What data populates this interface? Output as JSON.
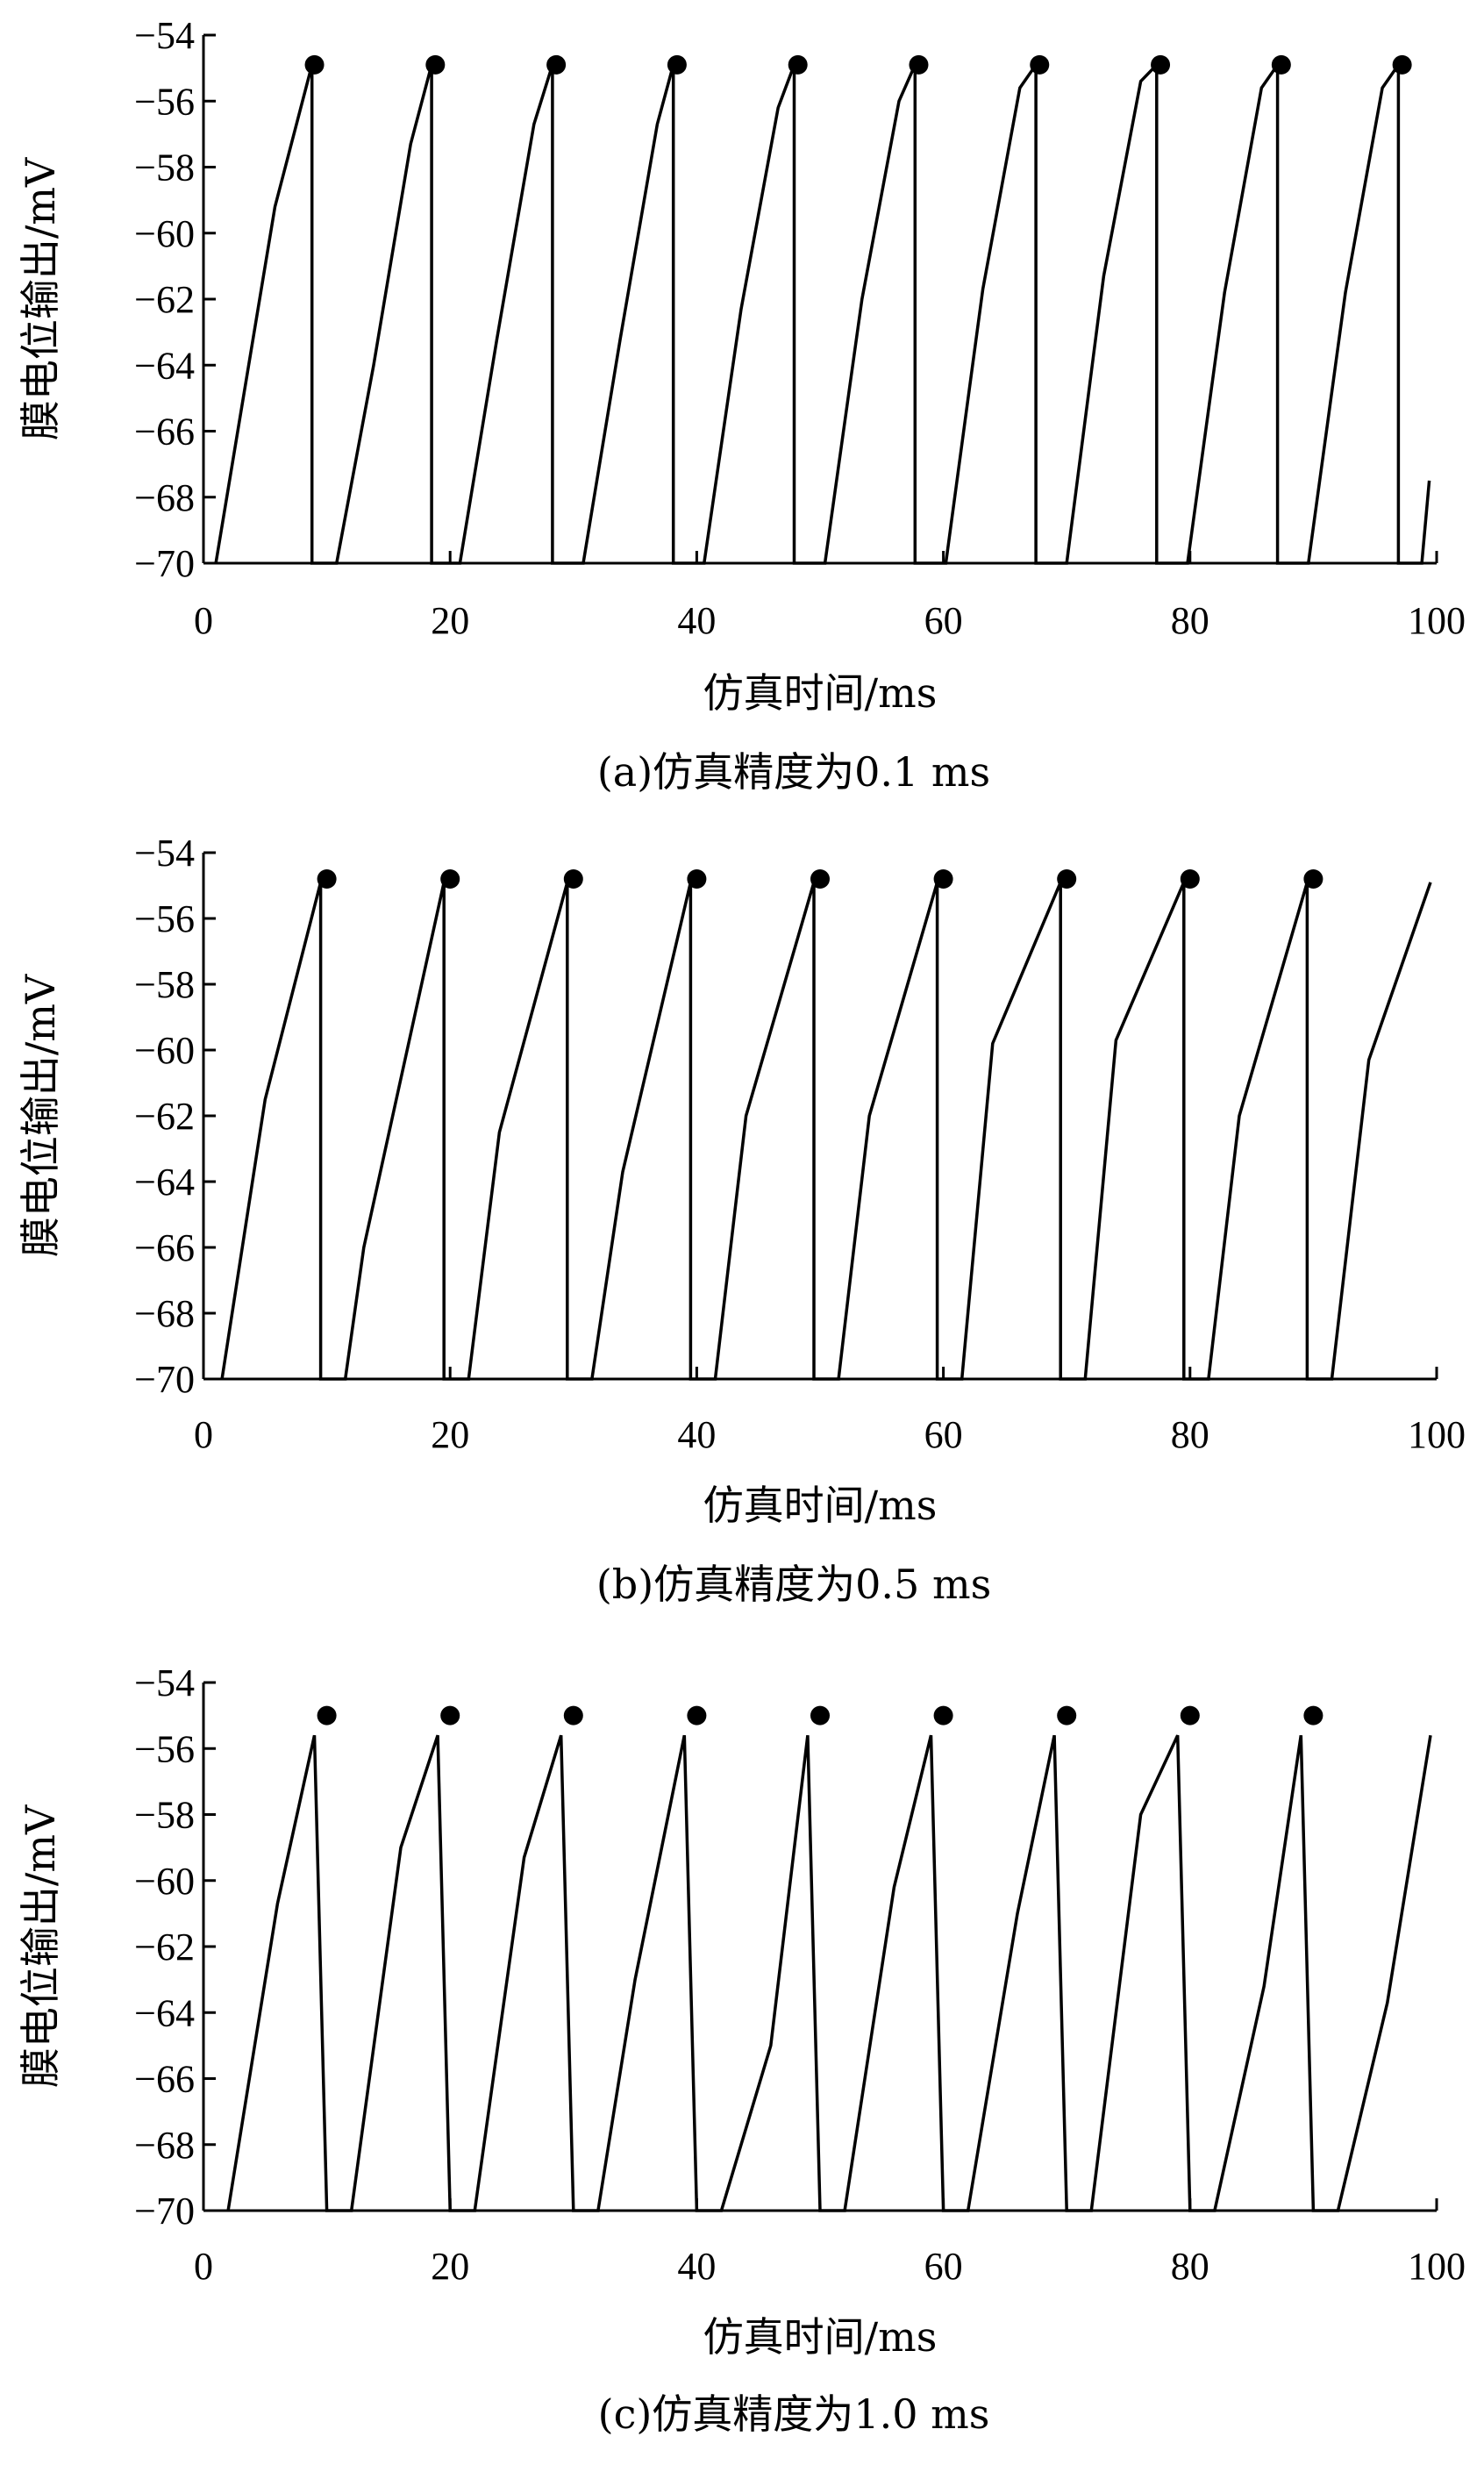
{
  "chart_data": [
    {
      "type": "line",
      "caption": "(a)仿真精度为0.1 ms",
      "xlabel": "仿真时间/ms",
      "ylabel": "膜电位输出/mV",
      "xlim": [
        0,
        100
      ],
      "ylim": [
        -70,
        -54
      ],
      "x_ticks": [
        "0",
        "20",
        "40",
        "60",
        "80",
        "100"
      ],
      "y_ticks": [
        "−54",
        "−56",
        "−58",
        "−60",
        "−62",
        "−64",
        "−66",
        "−68",
        "−70"
      ],
      "series": [
        {
          "x": [
            1,
            5.8,
            8.8,
            8.8,
            10.8,
            13.8,
            16.8,
            18.5,
            18.5,
            20.8,
            23.8,
            26.8,
            28.3,
            28.3,
            30.8,
            33.8,
            36.8,
            38.1,
            38.1,
            40.6,
            43.6,
            46.6,
            47.9,
            47.9,
            50.4,
            53.4,
            56.4,
            57.7,
            57.7,
            60.2,
            63.2,
            66.2,
            67.5,
            67.5,
            70.0,
            73.0,
            76.0,
            77.3,
            77.3,
            79.8,
            82.8,
            85.8,
            87.1,
            87.1,
            89.6,
            92.6,
            95.6,
            96.9,
            96.9,
            98.8,
            99.4
          ],
          "y": [
            -70,
            -59.2,
            -54.9,
            -70,
            -70,
            -64.0,
            -57.3,
            -54.9,
            -70,
            -70,
            -63.2,
            -56.7,
            -54.9,
            -70,
            -70,
            -63.2,
            -56.7,
            -54.9,
            -70,
            -70,
            -62.3,
            -56.2,
            -54.9,
            -70,
            -70,
            -62.0,
            -56.0,
            -54.9,
            -70,
            -70,
            -61.7,
            -55.6,
            -54.9,
            -70,
            -70,
            -61.3,
            -55.4,
            -54.9,
            -70,
            -70,
            -61.8,
            -55.6,
            -54.9,
            -70,
            -70,
            -61.8,
            -55.6,
            -54.9,
            -70,
            -70,
            -67.5
          ]
        }
      ],
      "markers": {
        "x": [
          9,
          18.8,
          28.6,
          38.4,
          48.2,
          58,
          67.8,
          77.6,
          87.4,
          97.2
        ],
        "y": [
          -54.9,
          -54.9,
          -54.9,
          -54.9,
          -54.9,
          -54.9,
          -54.9,
          -54.9,
          -54.9,
          -54.9
        ]
      }
    },
    {
      "type": "line",
      "caption": "(b)仿真精度为0.5 ms",
      "xlabel": "仿真时间/ms",
      "ylabel": "膜电位输出/mV",
      "xlim": [
        0,
        100
      ],
      "ylim": [
        -70,
        -54
      ],
      "x_ticks": [
        "0",
        "20",
        "40",
        "60",
        "80",
        "100"
      ],
      "y_ticks": [
        "−54",
        "−56",
        "−58",
        "−60",
        "−62",
        "−64",
        "−66",
        "−68",
        "−70"
      ],
      "series": [
        {
          "x": [
            1.5,
            5,
            9.5,
            9.5,
            11.5,
            13,
            19.5,
            19.5,
            21.5,
            24,
            29.5,
            29.5,
            31.5,
            34,
            39.5,
            39.5,
            41.5,
            44,
            49.5,
            49.5,
            51.5,
            54,
            59.5,
            59.5,
            61.5,
            64,
            69.5,
            69.5,
            71.5,
            74,
            79.5,
            79.5,
            81.5,
            84,
            89.5,
            89.5,
            91.5,
            94.5,
            99.5
          ],
          "y": [
            -70,
            -61.5,
            -54.9,
            -70,
            -70,
            -66.0,
            -54.9,
            -70,
            -70,
            -62.5,
            -54.9,
            -70,
            -70,
            -63.7,
            -54.9,
            -70,
            -70,
            -62.0,
            -54.9,
            -70,
            -70,
            -62.0,
            -54.9,
            -70,
            -70,
            -59.8,
            -54.9,
            -70,
            -70,
            -59.7,
            -54.9,
            -70,
            -70,
            -62.0,
            -54.9,
            -70,
            -70,
            -60.3,
            -54.9
          ]
        }
      ],
      "markers": {
        "x": [
          10,
          20,
          30,
          40,
          50,
          60,
          70,
          80,
          90
        ],
        "y": [
          -54.8,
          -54.8,
          -54.8,
          -54.8,
          -54.8,
          -54.8,
          -54.8,
          -54.8,
          -54.8
        ]
      }
    },
    {
      "type": "line",
      "caption": "(c)仿真精度为1.0 ms",
      "xlabel": "仿真时间/ms",
      "ylabel": "膜电位输出/mV",
      "xlim": [
        0,
        100
      ],
      "ylim": [
        -70,
        -54
      ],
      "x_ticks": [
        "0",
        "20",
        "40",
        "60",
        "80",
        "100"
      ],
      "y_ticks": [
        "−54",
        "−56",
        "−58",
        "−60",
        "−62",
        "−64",
        "−66",
        "−68",
        "−70"
      ],
      "series": [
        {
          "x": [
            2,
            6,
            9,
            10,
            12,
            16,
            19,
            20,
            22,
            26,
            29,
            30,
            32,
            35,
            39,
            40,
            42,
            46,
            49,
            50,
            52,
            56,
            59,
            60,
            62,
            66,
            69,
            70,
            72,
            76,
            79,
            80,
            82,
            86,
            89,
            90,
            92,
            96,
            99.5
          ],
          "y": [
            -70,
            -60.7,
            -55.6,
            -70,
            -70,
            -59.0,
            -55.6,
            -70,
            -70,
            -59.3,
            -55.6,
            -70,
            -70,
            -63.0,
            -55.6,
            -70,
            -70,
            -65.0,
            -55.6,
            -70,
            -70,
            -60.2,
            -55.6,
            -70,
            -70,
            -61.0,
            -55.6,
            -70,
            -70,
            -58.0,
            -55.6,
            -70,
            -70,
            -63.2,
            -55.6,
            -70,
            -70,
            -63.7,
            -55.6
          ]
        }
      ],
      "markers": {
        "x": [
          10,
          20,
          30,
          40,
          50,
          60,
          70,
          80,
          90
        ],
        "y": [
          -55,
          -55,
          -55,
          -55,
          -55,
          -55,
          -55,
          -55,
          -55
        ]
      }
    }
  ]
}
